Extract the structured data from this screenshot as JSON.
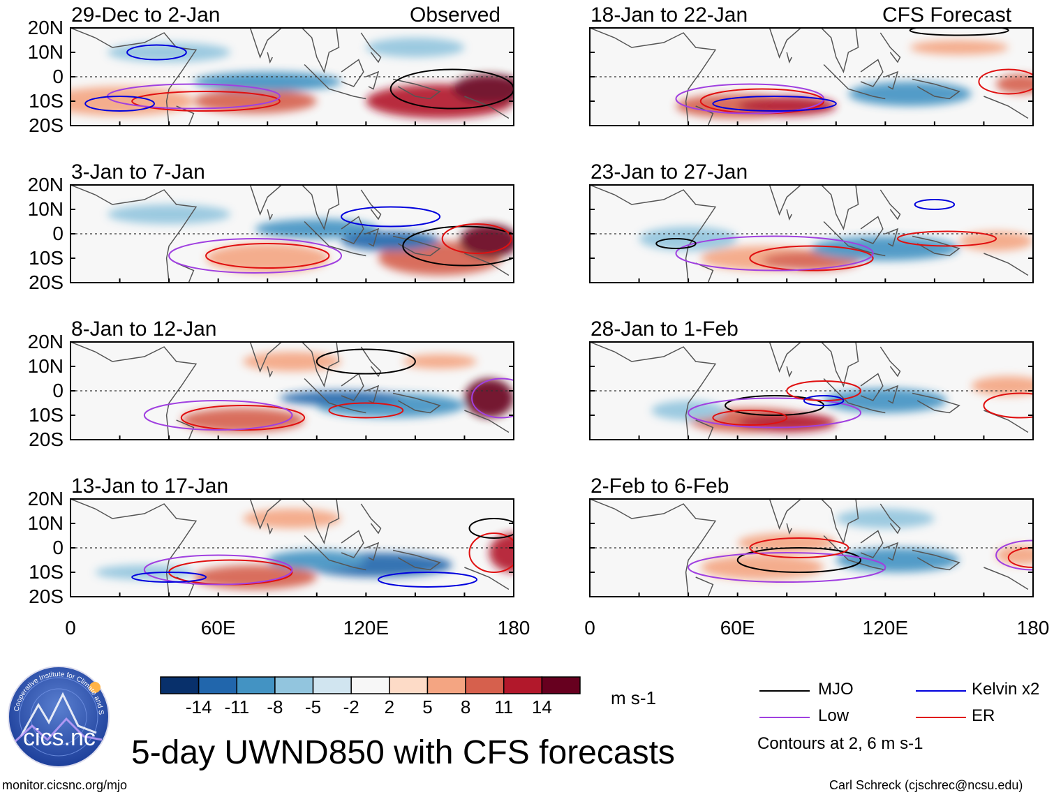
{
  "header": {
    "observed_label": "Observed",
    "forecast_label": "CFS Forecast"
  },
  "panels": {
    "observed": [
      {
        "title": "29-Dec to 2-Jan"
      },
      {
        "title": "3-Jan to 7-Jan"
      },
      {
        "title": "8-Jan to 12-Jan"
      },
      {
        "title": "13-Jan to 17-Jan"
      }
    ],
    "forecast": [
      {
        "title": "18-Jan to 22-Jan"
      },
      {
        "title": "23-Jan to 27-Jan"
      },
      {
        "title": "28-Jan to 1-Feb"
      },
      {
        "title": "2-Feb to 6-Feb"
      }
    ]
  },
  "chart_data": {
    "type": "heatmap",
    "title": "5-day UWND850 with CFS forecasts",
    "variable": "850-hPa zonal wind anomaly",
    "units": "m s-1",
    "x_axis": {
      "range": [
        0,
        180
      ],
      "ticks": [
        "0",
        "60E",
        "120E",
        "180"
      ]
    },
    "y_axis": {
      "range": [
        -20,
        20
      ],
      "ticks": [
        "20N",
        "10N",
        "0",
        "10S",
        "20S"
      ]
    },
    "colorbar": {
      "levels": [
        "-14",
        "-11",
        "-8",
        "-5",
        "-2",
        "2",
        "5",
        "8",
        "11",
        "14"
      ],
      "colors": [
        "#08306b",
        "#2166ac",
        "#4393c3",
        "#92c5de",
        "#d1e5f0",
        "#f7f7f7",
        "#fddbc7",
        "#f4a582",
        "#d6604d",
        "#b2182b",
        "#67001f"
      ]
    },
    "contour_legend": [
      {
        "name": "MJO",
        "color": "#000000"
      },
      {
        "name": "Kelvin x2",
        "color": "#0000dd"
      },
      {
        "name": "Low",
        "color": "#a040e0"
      },
      {
        "name": "ER",
        "color": "#e01010"
      }
    ],
    "contour_note": "Contours at 2, 6 m s-1"
  },
  "footer": {
    "left": "monitor.cicsnc.org/mjo",
    "right": "Carl Schreck (cjschrec@ncsu.edu)",
    "logo_text": "cics.nc",
    "logo_ring": "Cooperative Institute for Climate and Satellites"
  }
}
